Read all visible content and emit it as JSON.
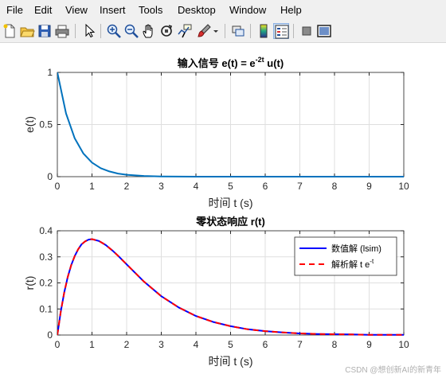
{
  "menubar": {
    "items": [
      "File",
      "Edit",
      "View",
      "Insert",
      "Tools",
      "Desktop",
      "Window",
      "Help"
    ]
  },
  "toolbar": {
    "buttons": [
      {
        "name": "new-figure-icon"
      },
      {
        "name": "open-file-icon"
      },
      {
        "name": "save-icon"
      },
      {
        "name": "print-icon"
      },
      {
        "name": "pointer-icon"
      },
      {
        "name": "zoom-in-icon"
      },
      {
        "name": "zoom-out-icon"
      },
      {
        "name": "pan-icon"
      },
      {
        "name": "rotate-3d-icon"
      },
      {
        "name": "data-cursor-icon"
      },
      {
        "name": "brush-icon"
      },
      {
        "name": "link-plot-icon"
      },
      {
        "name": "colorbar-icon"
      },
      {
        "name": "legend-icon"
      },
      {
        "name": "hide-plot-tools-icon"
      },
      {
        "name": "show-plot-tools-icon"
      }
    ]
  },
  "chart_data": [
    {
      "type": "line",
      "title": "输入信号 e(t) = e-2t u(t)",
      "title_parts": {
        "prefix": "输入信号 e(t) = e",
        "superscript": "-2t",
        "suffix": " u(t)"
      },
      "xlabel": "时间 t (s)",
      "ylabel": "e(t)",
      "xlim": [
        0,
        10
      ],
      "ylim": [
        0,
        1
      ],
      "xticks": [
        "0",
        "1",
        "2",
        "3",
        "4",
        "5",
        "6",
        "7",
        "8",
        "9",
        "10"
      ],
      "yticks": [
        "0",
        "0.5",
        "1"
      ],
      "grid": true,
      "series": [
        {
          "color": "#0072bd",
          "x": [
            0,
            0.25,
            0.5,
            0.75,
            1,
            1.25,
            1.5,
            1.75,
            2,
            2.5,
            3,
            3.5,
            4,
            5,
            6,
            7,
            8,
            9,
            10
          ],
          "y": [
            1,
            0.607,
            0.368,
            0.223,
            0.135,
            0.082,
            0.05,
            0.03,
            0.018,
            0.007,
            0.002,
            0.001,
            0,
            0,
            0,
            0,
            0,
            0,
            0
          ]
        }
      ]
    },
    {
      "type": "line",
      "title": "零状态响应 r(t)",
      "xlabel": "时间 t (s)",
      "ylabel": "r(t)",
      "xlim": [
        0,
        10
      ],
      "ylim": [
        0,
        0.4
      ],
      "xticks": [
        "0",
        "1",
        "2",
        "3",
        "4",
        "5",
        "6",
        "7",
        "8",
        "9",
        "10"
      ],
      "yticks": [
        "0",
        "0.1",
        "0.2",
        "0.3",
        "0.4"
      ],
      "grid": true,
      "legend_position": "top-right",
      "series": [
        {
          "name": "数值解 (lsim)",
          "color": "#0000ff",
          "style": "solid",
          "x": [
            0,
            0.1,
            0.2,
            0.3,
            0.4,
            0.5,
            0.6,
            0.7,
            0.8,
            0.9,
            1,
            1.2,
            1.4,
            1.6,
            1.8,
            2,
            2.5,
            3,
            3.5,
            4,
            4.5,
            5,
            5.5,
            6,
            6.5,
            7,
            7.5,
            8,
            8.5,
            9,
            9.5,
            10
          ],
          "y": [
            0,
            0.09,
            0.164,
            0.222,
            0.268,
            0.303,
            0.329,
            0.348,
            0.359,
            0.366,
            0.368,
            0.361,
            0.345,
            0.323,
            0.298,
            0.271,
            0.205,
            0.149,
            0.106,
            0.073,
            0.05,
            0.034,
            0.022,
            0.015,
            0.01,
            0.006,
            0.004,
            0.003,
            0.002,
            0.001,
            0.001,
            0.0005
          ]
        },
        {
          "name": "解析解 t e",
          "name_parts": {
            "prefix": "解析解 t e",
            "superscript": "-t"
          },
          "color": "#ff0000",
          "style": "dashed",
          "x": [
            0,
            0.1,
            0.2,
            0.3,
            0.4,
            0.5,
            0.6,
            0.7,
            0.8,
            0.9,
            1,
            1.2,
            1.4,
            1.6,
            1.8,
            2,
            2.5,
            3,
            3.5,
            4,
            4.5,
            5,
            5.5,
            6,
            6.5,
            7,
            7.5,
            8,
            8.5,
            9,
            9.5,
            10
          ],
          "y": [
            0,
            0.09,
            0.164,
            0.222,
            0.268,
            0.303,
            0.329,
            0.348,
            0.359,
            0.366,
            0.368,
            0.361,
            0.345,
            0.323,
            0.298,
            0.271,
            0.205,
            0.149,
            0.106,
            0.073,
            0.05,
            0.034,
            0.022,
            0.015,
            0.01,
            0.006,
            0.004,
            0.003,
            0.002,
            0.001,
            0.001,
            0.0005
          ]
        }
      ]
    }
  ],
  "watermark": "CSDN @想创新AI的新青年"
}
